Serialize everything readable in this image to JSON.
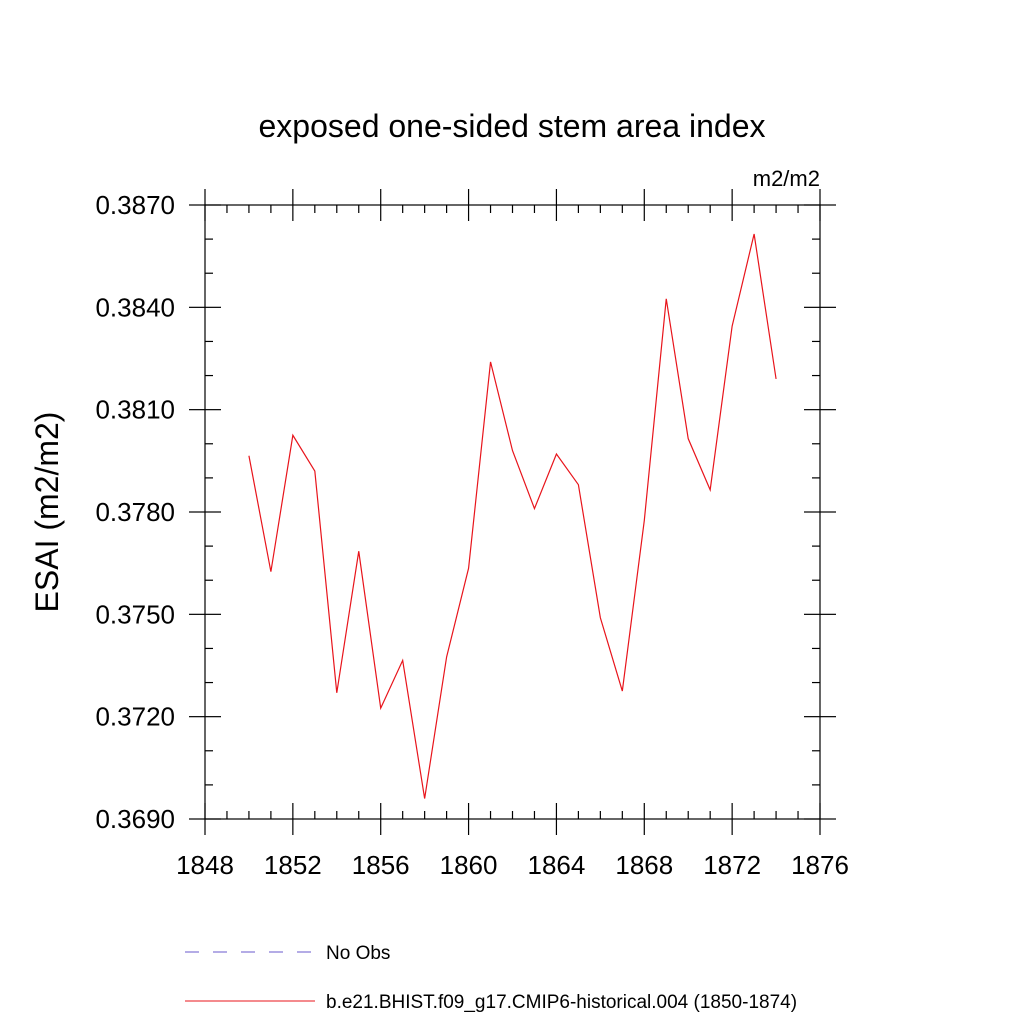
{
  "chart_data": {
    "type": "line",
    "title": "exposed one-sided stem area index",
    "units_label": "m2/m2",
    "ylabel": "ESAI  (m2/m2)",
    "xlabel": "",
    "xlim": [
      1848,
      1876
    ],
    "ylim": [
      0.369,
      0.387
    ],
    "x_ticks": [
      "1848",
      "1852",
      "1856",
      "1860",
      "1864",
      "1868",
      "1872",
      "1876"
    ],
    "y_ticks": [
      "0.3690",
      "0.3720",
      "0.3750",
      "0.3780",
      "0.3810",
      "0.3840",
      "0.3870"
    ],
    "grid": false,
    "legend_placement": "bottom",
    "legend": [
      {
        "label": "No Obs",
        "style": "dashed",
        "color": "#6a5acd"
      },
      {
        "label": "b.e21.BHIST.f09_g17.CMIP6-historical.004 (1850-1874)",
        "style": "solid",
        "color": "#e8141b"
      }
    ],
    "series": [
      {
        "name": "b.e21.BHIST.f09_g17.CMIP6-historical.004 (1850-1874)",
        "color": "#e8141b",
        "x": [
          1850,
          1851,
          1852,
          1853,
          1854,
          1855,
          1856,
          1857,
          1858,
          1859,
          1860,
          1861,
          1862,
          1863,
          1864,
          1865,
          1866,
          1867,
          1868,
          1869,
          1870,
          1871,
          1872,
          1873,
          1874
        ],
        "values": [
          0.37965,
          0.37625,
          0.38025,
          0.3792,
          0.3727,
          0.37685,
          0.37225,
          0.37365,
          0.3696,
          0.37375,
          0.37635,
          0.3824,
          0.3798,
          0.3781,
          0.3797,
          0.3788,
          0.3749,
          0.37275,
          0.37775,
          0.38425,
          0.38015,
          0.37865,
          0.38345,
          0.38615,
          0.3819
        ]
      }
    ]
  }
}
